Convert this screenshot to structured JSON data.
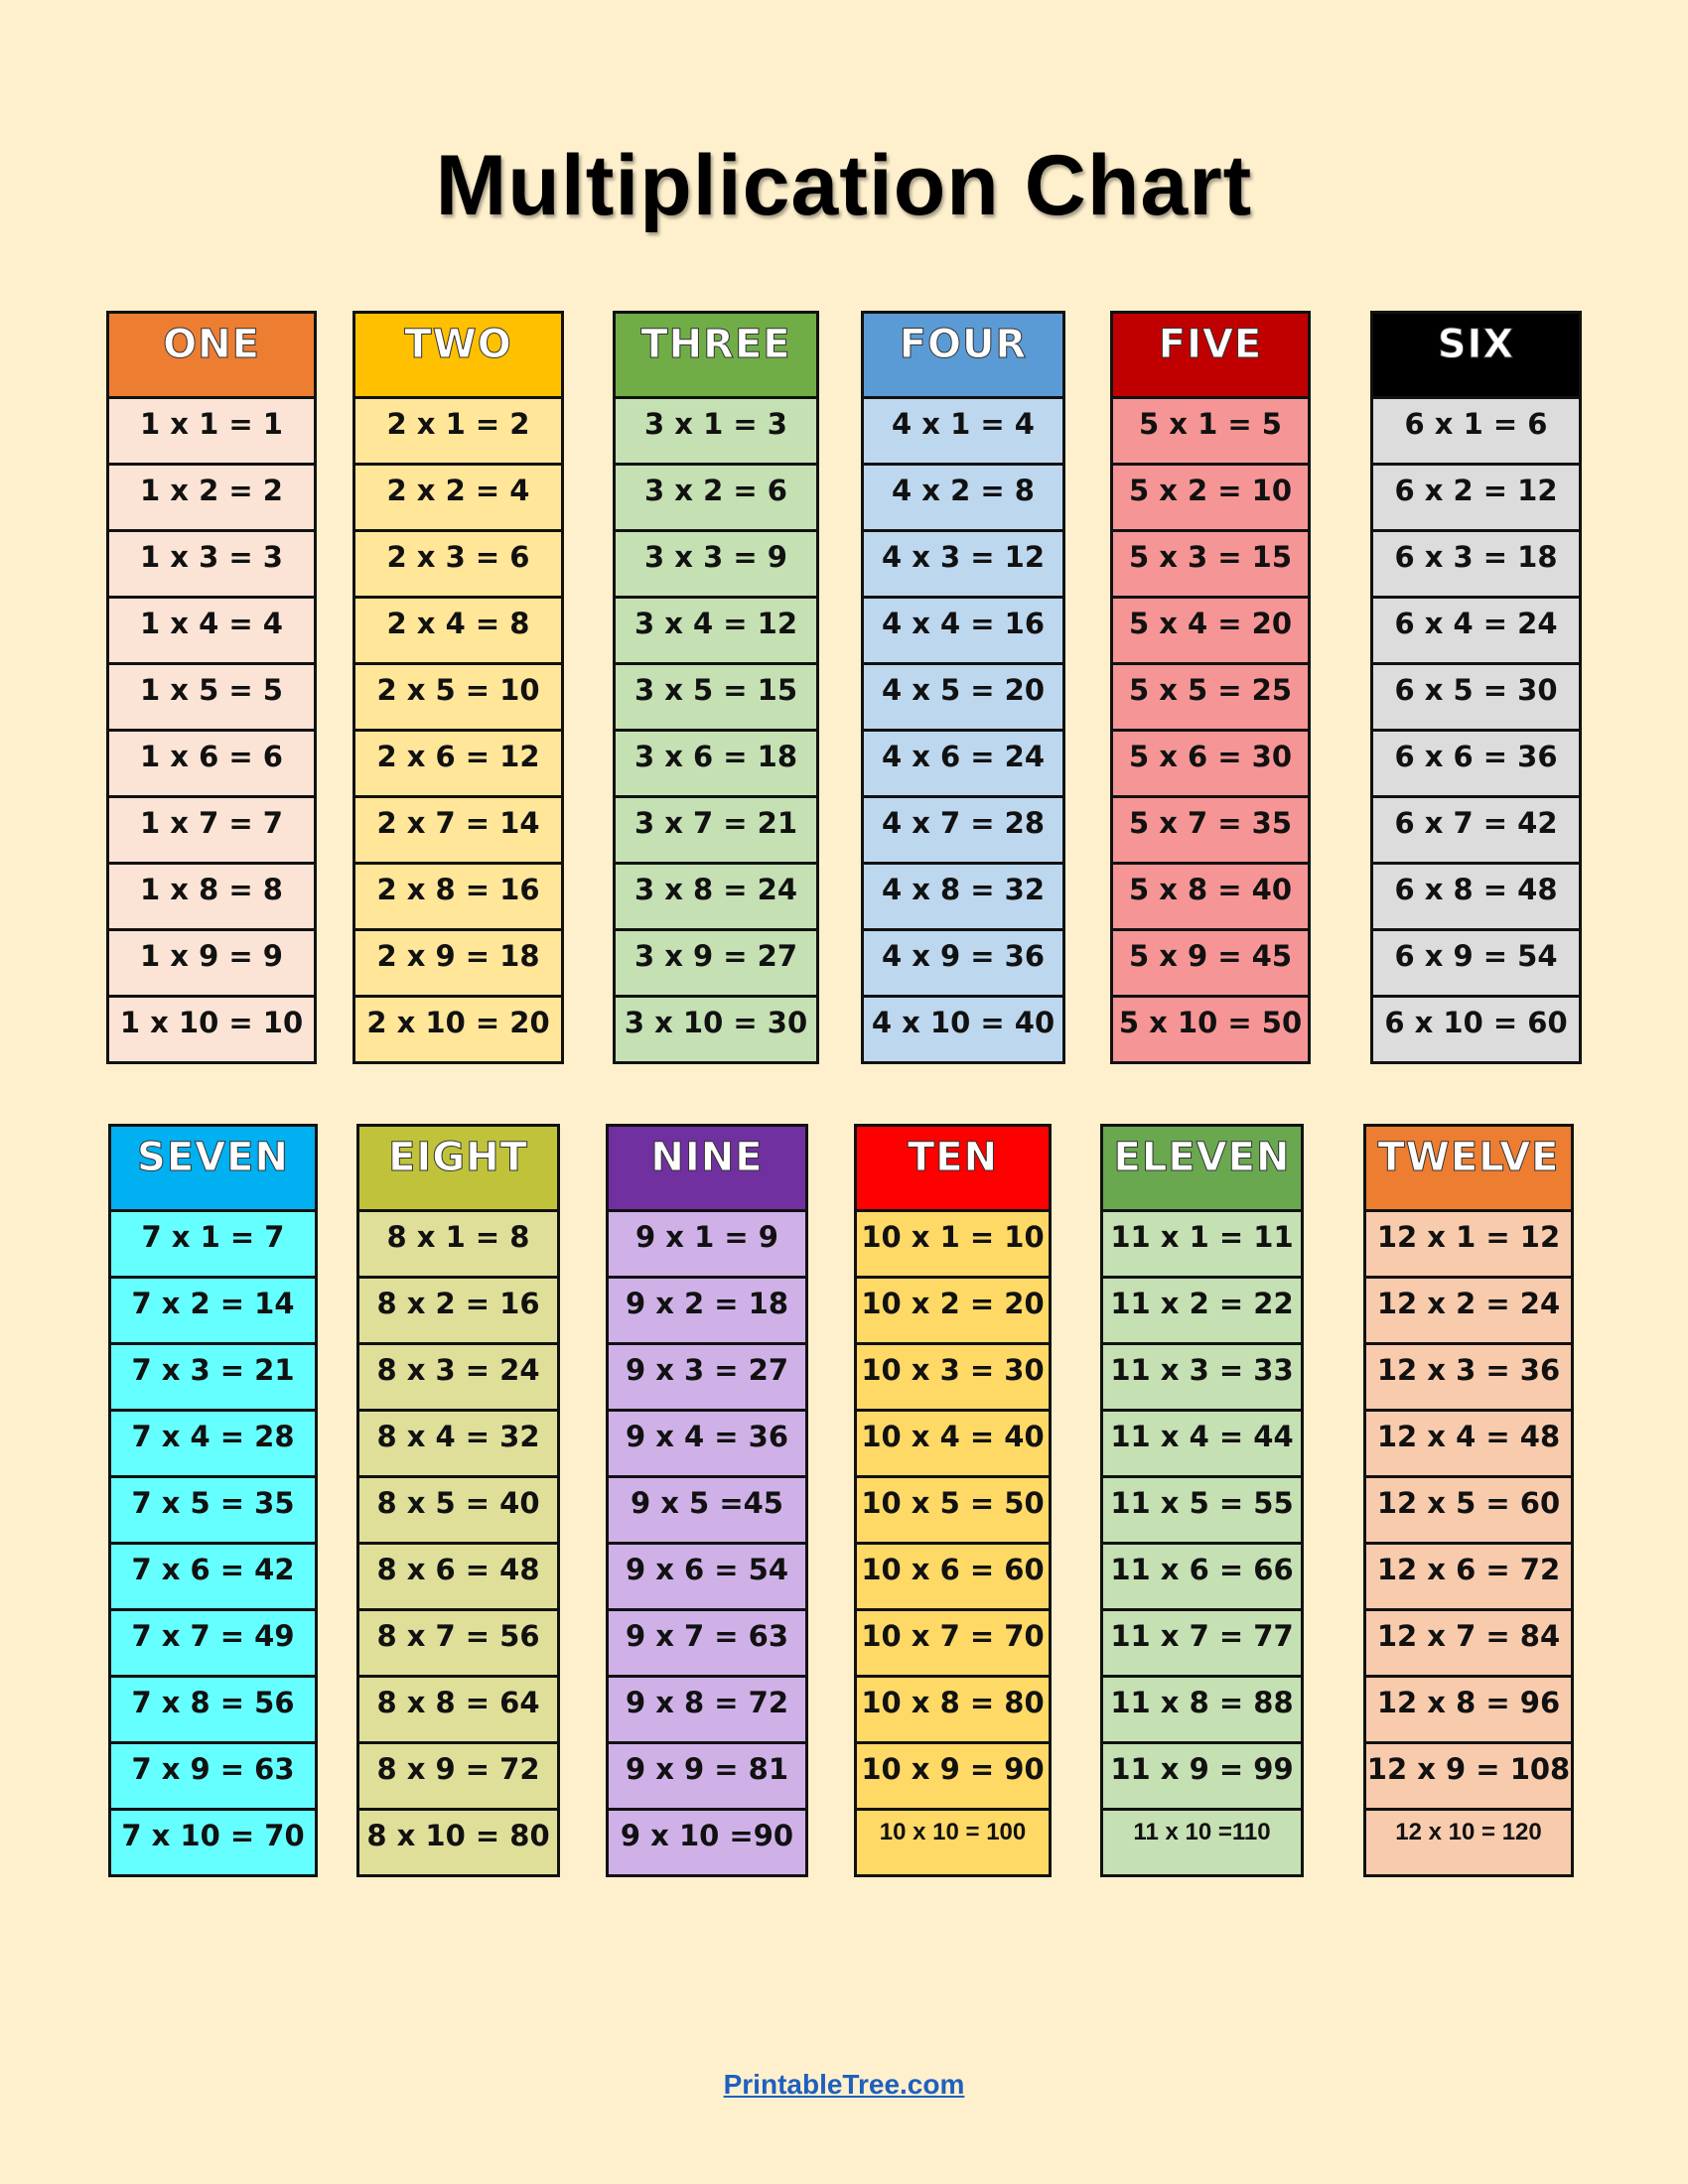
{
  "title": "Multiplication Chart",
  "footer_link": "PrintableTree.com",
  "tables": [
    {
      "name": "ONE",
      "header_color": "#ed7d31",
      "body_color": "#fbe4d5",
      "rows": [
        "1 x 1 = 1",
        "1 x 2 = 2",
        "1 x 3 = 3",
        "1 x 4 = 4",
        "1 x 5 = 5",
        "1 x 6 = 6",
        "1 x 7 = 7",
        "1 x 8 = 8",
        "1 x 9 = 9",
        "1 x 10 = 10"
      ]
    },
    {
      "name": "TWO",
      "header_color": "#ffc000",
      "body_color": "#ffe699",
      "rows": [
        "2 x 1 = 2",
        "2 x 2 = 4",
        "2 x 3 = 6",
        "2 x 4 = 8",
        "2 x 5 = 10",
        "2 x 6 = 12",
        "2 x 7 = 14",
        "2 x 8 = 16",
        "2 x 9 = 18",
        "2 x 10 = 20"
      ]
    },
    {
      "name": "THREE",
      "header_color": "#70ad47",
      "body_color": "#c5e0b3",
      "rows": [
        "3 x 1 = 3",
        "3 x 2 = 6",
        "3 x 3 = 9",
        "3 x 4 = 12",
        "3 x 5 = 15",
        "3 x 6 = 18",
        "3 x 7 = 21",
        "3 x 8 = 24",
        "3 x 9 = 27",
        "3 x 10 = 30"
      ]
    },
    {
      "name": "FOUR",
      "header_color": "#5b9bd5",
      "body_color": "#bdd7ee",
      "rows": [
        "4 x 1 = 4",
        "4 x 2 = 8",
        "4 x 3 = 12",
        "4 x 4 = 16",
        "4 x 5 = 20",
        "4 x 6 = 24",
        "4 x 7 = 28",
        "4 x 8 = 32",
        "4 x 9 = 36",
        "4 x 10 = 40"
      ]
    },
    {
      "name": "FIVE",
      "header_color": "#c00000",
      "body_color": "#f69595",
      "rows": [
        "5 x 1 = 5",
        "5 x 2 = 10",
        "5 x 3 = 15",
        "5 x 4 = 20",
        "5 x 5 = 25",
        "5 x 6 = 30",
        "5 x 7 = 35",
        "5 x 8 = 40",
        "5 x 9 = 45",
        "5 x 10 = 50"
      ]
    },
    {
      "name": "SIX",
      "header_color": "#000000",
      "body_color": "#dcdcdc",
      "rows": [
        "6 x 1 = 6",
        "6 x 2 = 12",
        "6 x 3 = 18",
        "6 x 4 = 24",
        "6 x 5 = 30",
        "6 x 6 = 36",
        "6 x 7 = 42",
        "6 x 8 = 48",
        "6 x 9 = 54",
        "6 x 10 = 60"
      ]
    },
    {
      "name": "SEVEN",
      "header_color": "#00b0f0",
      "body_color": "#66ffff",
      "rows": [
        "7 x 1 = 7",
        "7 x 2 = 14",
        "7 x 3 = 21",
        "7 x 4 = 28",
        "7 x 5 = 35",
        "7 x 6 = 42",
        "7 x 7 = 49",
        "7 x 8 = 56",
        "7 x 9 = 63",
        "7 x 10 = 70"
      ]
    },
    {
      "name": "EIGHT",
      "header_color": "#c0c33a",
      "body_color": "#dfdf9a",
      "rows": [
        "8 x 1 = 8",
        "8 x 2 = 16",
        "8 x 3 = 24",
        "8 x 4 = 32",
        "8 x 5 = 40",
        "8 x 6 = 48",
        "8 x 7 = 56",
        "8 x 8 = 64",
        "8 x 9 = 72",
        "8 x 10 = 80"
      ]
    },
    {
      "name": "NINE",
      "header_color": "#7030a0",
      "body_color": "#cfb1e8",
      "rows": [
        "9 x 1 = 9",
        "9 x 2 = 18",
        "9 x 3 = 27",
        "9 x 4 = 36",
        "9 x 5 =45",
        "9 x 6 = 54",
        "9 x 7 = 63",
        "9 x 8 = 72",
        "9 x 9 = 81",
        "9 x 10 =90"
      ]
    },
    {
      "name": "TEN",
      "header_color": "#ff0000",
      "body_color": "#ffd966",
      "rows": [
        "10 x 1 = 10",
        "10 x 2 = 20",
        "10 x 3 = 30",
        "10 x 4 = 40",
        "10 x 5 = 50",
        "10 x 6 = 60",
        "10 x 7 = 70",
        "10 x 8 = 80",
        "10 x 9 = 90",
        "10 x 10 = 100"
      ]
    },
    {
      "name": "ELEVEN",
      "header_color": "#6aa84f",
      "body_color": "#c5e0b3",
      "rows": [
        "11 x 1 = 11",
        "11 x 2 = 22",
        "11 x 3 = 33",
        "11 x 4 = 44",
        "11 x 5 = 55",
        "11 x 6 = 66",
        "11 x 7 = 77",
        "11 x 8 = 88",
        "11 x 9 = 99",
        "11 x 10 =110"
      ]
    },
    {
      "name": "TWELVE",
      "header_color": "#ed7d31",
      "body_color": "#f8cbad",
      "rows": [
        "12 x 1 = 12",
        "12 x 2 = 24",
        "12 x 3 = 36",
        "12 x 4 = 48",
        "12 x 5 = 60",
        "12 x 6 = 72",
        "12 x 7 = 84",
        "12 x 8 = 96",
        "12 x 9 = 108",
        "12 x 10 = 120"
      ]
    }
  ]
}
